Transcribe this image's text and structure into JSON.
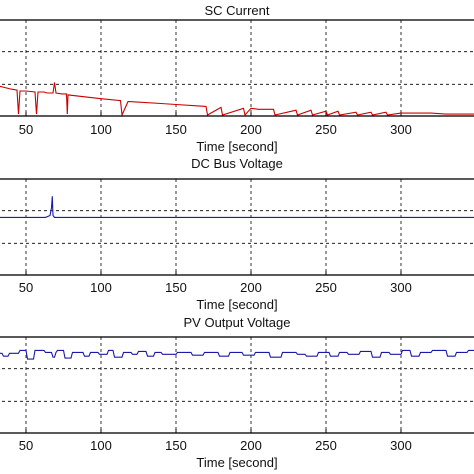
{
  "chart_data": [
    {
      "type": "line",
      "title": "SC Current",
      "xlabel": "Time [second]",
      "ylabel": "",
      "xlim": [
        30,
        350
      ],
      "ylim": [
        0,
        1
      ],
      "xticks": [
        50,
        100,
        150,
        200,
        250,
        300
      ],
      "yticks_grid": [
        0.33,
        0.67
      ],
      "grid": true,
      "series": [
        {
          "color": "#cc0000",
          "x": [
            30,
            40,
            44,
            45,
            46,
            50,
            56,
            57,
            58,
            62,
            64,
            68,
            69,
            70,
            74,
            77,
            77.5,
            78,
            100,
            113,
            114,
            118,
            119,
            140,
            150,
            170,
            171,
            180,
            181,
            195,
            196,
            200,
            205,
            215,
            216,
            230,
            231,
            240,
            241,
            250,
            251,
            258,
            259,
            270,
            271,
            280,
            281,
            290,
            291,
            300,
            310,
            320,
            330,
            340,
            350
          ],
          "y": [
            0.32,
            0.28,
            0.27,
            0.02,
            0.26,
            0.26,
            0.25,
            0.02,
            0.25,
            0.25,
            0.24,
            0.24,
            0.35,
            0.24,
            0.23,
            0.23,
            0.02,
            0.22,
            0.18,
            0.16,
            0.01,
            0.15,
            0.15,
            0.13,
            0.12,
            0.1,
            0.01,
            0.09,
            0.01,
            0.08,
            0.01,
            0.08,
            0.07,
            0.07,
            0.01,
            0.06,
            0.01,
            0.06,
            0.01,
            0.05,
            0.01,
            0.05,
            0.01,
            0.04,
            0.01,
            0.04,
            0.01,
            0.04,
            0.01,
            0.03,
            0.03,
            0.03,
            0.02,
            0.02,
            0.02
          ]
        }
      ]
    },
    {
      "type": "line",
      "title": "DC Bus Voltage",
      "xlabel": "Time [second]",
      "ylabel": "",
      "xlim": [
        30,
        350
      ],
      "ylim": [
        0,
        1
      ],
      "xticks": [
        50,
        100,
        150,
        200,
        250,
        300
      ],
      "yticks_grid": [
        0.33,
        0.67
      ],
      "grid": true,
      "series": [
        {
          "color": "#1a1aa8",
          "x": [
            30,
            63,
            66,
            67,
            67.5,
            68,
            69,
            70,
            80,
            350
          ],
          "y": [
            0.6,
            0.6,
            0.62,
            0.7,
            0.82,
            0.62,
            0.6,
            0.6,
            0.6,
            0.6
          ]
        }
      ]
    },
    {
      "type": "line",
      "title": "PV Output Voltage",
      "xlabel": "Time [second]",
      "ylabel": "",
      "xlim": [
        30,
        350
      ],
      "ylim": [
        0,
        1
      ],
      "xticks": [
        50,
        100,
        150,
        200,
        250,
        300
      ],
      "yticks_grid": [
        0.33,
        0.67
      ],
      "grid": true,
      "series": [
        {
          "color": "#1a1aa8",
          "x": [
            30,
            34,
            35,
            38,
            39,
            45,
            46,
            50,
            51,
            55,
            56,
            62,
            63,
            66,
            67,
            68,
            69,
            70,
            71,
            75,
            76,
            80,
            81,
            88,
            89,
            92,
            93,
            98,
            99,
            104,
            105,
            108,
            109,
            114,
            115,
            120,
            121,
            124,
            125,
            130,
            131,
            135,
            136,
            140,
            141,
            150,
            151,
            160,
            161,
            168,
            169,
            178,
            179,
            185,
            186,
            194,
            195,
            202,
            203,
            212,
            213,
            220,
            221,
            230,
            231,
            236,
            237,
            244,
            245,
            252,
            253,
            258,
            259,
            264,
            265,
            272,
            273,
            280,
            281,
            286,
            287,
            292,
            293,
            300,
            301,
            306,
            307,
            312,
            313,
            320,
            321,
            330,
            331,
            336,
            337,
            344,
            345,
            350
          ],
          "y": [
            0.83,
            0.83,
            0.8,
            0.8,
            0.83,
            0.83,
            0.86,
            0.86,
            0.77,
            0.77,
            0.86,
            0.86,
            0.84,
            0.84,
            0.84,
            0.79,
            0.79,
            0.84,
            0.86,
            0.86,
            0.78,
            0.78,
            0.84,
            0.84,
            0.8,
            0.8,
            0.84,
            0.84,
            0.82,
            0.82,
            0.86,
            0.86,
            0.79,
            0.79,
            0.84,
            0.84,
            0.82,
            0.82,
            0.85,
            0.85,
            0.8,
            0.8,
            0.84,
            0.84,
            0.82,
            0.82,
            0.84,
            0.84,
            0.81,
            0.81,
            0.84,
            0.84,
            0.8,
            0.8,
            0.84,
            0.84,
            0.81,
            0.81,
            0.84,
            0.84,
            0.79,
            0.79,
            0.84,
            0.84,
            0.82,
            0.82,
            0.8,
            0.8,
            0.84,
            0.84,
            0.8,
            0.8,
            0.84,
            0.84,
            0.82,
            0.82,
            0.85,
            0.85,
            0.79,
            0.79,
            0.84,
            0.84,
            0.82,
            0.82,
            0.86,
            0.86,
            0.8,
            0.8,
            0.84,
            0.84,
            0.86,
            0.86,
            0.8,
            0.8,
            0.84,
            0.84,
            0.86,
            0.86
          ]
        }
      ]
    }
  ]
}
